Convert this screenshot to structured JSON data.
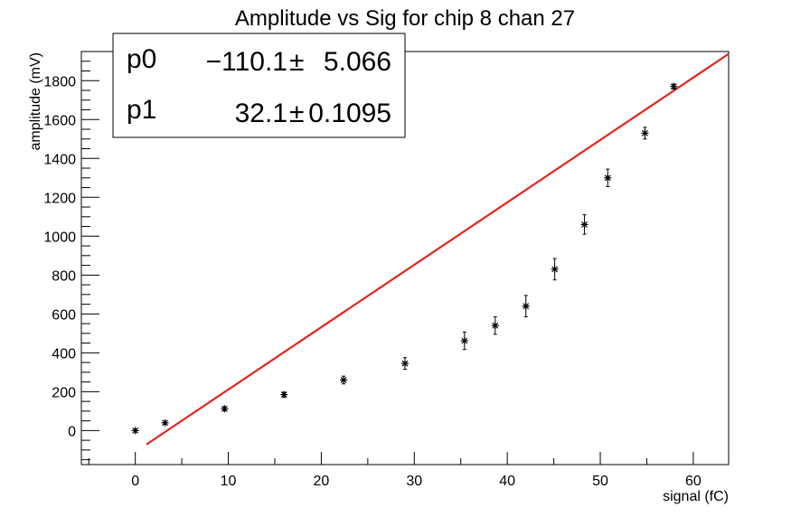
{
  "chart_data": {
    "type": "scatter",
    "title": "Amplitude vs Sig for chip 8 chan 27",
    "xlabel": "signal (fC)",
    "ylabel": "amplitude (mV)",
    "xlim": [
      -5.8,
      63.8
    ],
    "ylim": [
      -175,
      1950
    ],
    "x_ticks": [
      0,
      10,
      20,
      30,
      40,
      50,
      60
    ],
    "y_ticks": [
      0,
      200,
      400,
      600,
      800,
      1000,
      1200,
      1400,
      1600,
      1800
    ],
    "grid": false,
    "points": [
      {
        "x": 0.0,
        "y": 0,
        "err": 8
      },
      {
        "x": 3.2,
        "y": 40,
        "err": 8
      },
      {
        "x": 9.6,
        "y": 112,
        "err": 10
      },
      {
        "x": 16.0,
        "y": 185,
        "err": 12
      },
      {
        "x": 22.4,
        "y": 260,
        "err": 20
      },
      {
        "x": 29.0,
        "y": 345,
        "err": 30
      },
      {
        "x": 35.4,
        "y": 462,
        "err": 45
      },
      {
        "x": 38.7,
        "y": 540,
        "err": 45
      },
      {
        "x": 42.0,
        "y": 640,
        "err": 55
      },
      {
        "x": 45.1,
        "y": 830,
        "err": 55
      },
      {
        "x": 48.3,
        "y": 1060,
        "err": 50
      },
      {
        "x": 50.8,
        "y": 1300,
        "err": 45
      },
      {
        "x": 54.8,
        "y": 1530,
        "err": 30
      },
      {
        "x": 57.9,
        "y": 1770,
        "err": 12
      }
    ],
    "fit": {
      "p0": -110.1,
      "p1": 32.1,
      "x_range": [
        1.2,
        63.8
      ],
      "color": "#e3241c"
    },
    "stats": {
      "rows": [
        {
          "name": "p0",
          "value": "−110.1",
          "pm": "±",
          "error": "5.066"
        },
        {
          "name": "p1",
          "value": "32.1",
          "pm": "±",
          "error": "0.1095"
        }
      ]
    }
  }
}
